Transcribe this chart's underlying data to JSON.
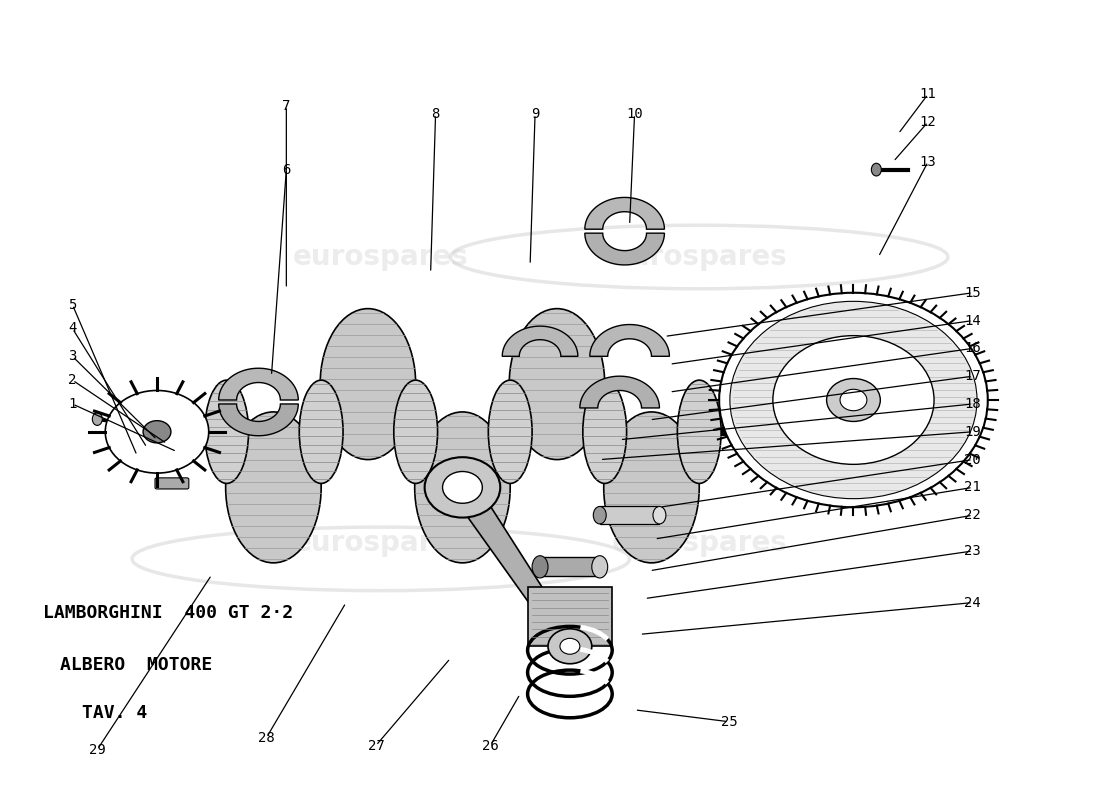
{
  "title_line1": "LAMBORGHINI  400 GT 2·2",
  "title_line2": "ALBERO  MOTORE",
  "title_line3": "TAV. 4",
  "bg_color": "#ffffff",
  "label_font_size": 10,
  "title_font_size": 13,
  "callouts": [
    [
      "1",
      [
        0.07,
        0.495
      ],
      [
        0.175,
        0.435
      ]
    ],
    [
      "2",
      [
        0.07,
        0.525
      ],
      [
        0.165,
        0.445
      ]
    ],
    [
      "3",
      [
        0.07,
        0.555
      ],
      [
        0.155,
        0.45
      ]
    ],
    [
      "4",
      [
        0.07,
        0.59
      ],
      [
        0.145,
        0.44
      ]
    ],
    [
      "5",
      [
        0.07,
        0.62
      ],
      [
        0.135,
        0.43
      ]
    ],
    [
      "6",
      [
        0.285,
        0.79
      ],
      [
        0.27,
        0.53
      ]
    ],
    [
      "7",
      [
        0.285,
        0.87
      ],
      [
        0.285,
        0.64
      ]
    ],
    [
      "8",
      [
        0.435,
        0.86
      ],
      [
        0.43,
        0.66
      ]
    ],
    [
      "9",
      [
        0.535,
        0.86
      ],
      [
        0.53,
        0.67
      ]
    ],
    [
      "10",
      [
        0.635,
        0.86
      ],
      [
        0.63,
        0.72
      ]
    ],
    [
      "11",
      [
        0.93,
        0.885
      ],
      [
        0.9,
        0.835
      ]
    ],
    [
      "12",
      [
        0.93,
        0.85
      ],
      [
        0.895,
        0.8
      ]
    ],
    [
      "13",
      [
        0.93,
        0.8
      ],
      [
        0.88,
        0.68
      ]
    ],
    [
      "14",
      [
        0.975,
        0.6
      ],
      [
        0.67,
        0.545
      ]
    ],
    [
      "15",
      [
        0.975,
        0.635
      ],
      [
        0.665,
        0.58
      ]
    ],
    [
      "16",
      [
        0.975,
        0.565
      ],
      [
        0.67,
        0.51
      ]
    ],
    [
      "17",
      [
        0.975,
        0.53
      ],
      [
        0.65,
        0.475
      ]
    ],
    [
      "18",
      [
        0.975,
        0.495
      ],
      [
        0.62,
        0.45
      ]
    ],
    [
      "19",
      [
        0.975,
        0.46
      ],
      [
        0.6,
        0.425
      ]
    ],
    [
      "20",
      [
        0.975,
        0.425
      ],
      [
        0.66,
        0.365
      ]
    ],
    [
      "21",
      [
        0.975,
        0.39
      ],
      [
        0.655,
        0.325
      ]
    ],
    [
      "22",
      [
        0.975,
        0.355
      ],
      [
        0.65,
        0.285
      ]
    ],
    [
      "23",
      [
        0.975,
        0.31
      ],
      [
        0.645,
        0.25
      ]
    ],
    [
      "24",
      [
        0.975,
        0.245
      ],
      [
        0.64,
        0.205
      ]
    ],
    [
      "25",
      [
        0.73,
        0.095
      ],
      [
        0.635,
        0.11
      ]
    ],
    [
      "26",
      [
        0.49,
        0.065
      ],
      [
        0.52,
        0.13
      ]
    ],
    [
      "27",
      [
        0.375,
        0.065
      ],
      [
        0.45,
        0.175
      ]
    ],
    [
      "28",
      [
        0.265,
        0.075
      ],
      [
        0.345,
        0.245
      ]
    ],
    [
      "29",
      [
        0.095,
        0.06
      ],
      [
        0.21,
        0.28
      ]
    ]
  ]
}
